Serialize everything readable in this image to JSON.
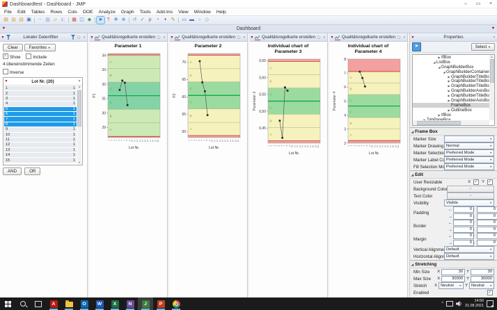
{
  "window": {
    "title": "Dashboardtest - Dashboard - JMP",
    "controls": [
      {
        "name": "minimize",
        "glyph": "–"
      },
      {
        "name": "restore",
        "glyph": "▭"
      },
      {
        "name": "close",
        "glyph": "×"
      }
    ]
  },
  "menu": {
    "items": [
      "File",
      "Edit",
      "Tables",
      "Rows",
      "Cols",
      "DOE",
      "Analyze",
      "Graph",
      "Tools",
      "Add-Ins",
      "View",
      "Window",
      "Help"
    ]
  },
  "toolbar": {
    "icons": [
      {
        "name": "new-data-table-icon",
        "glyph": "▤",
        "color": "#cf8f34"
      },
      {
        "name": "open-icon",
        "glyph": "▨",
        "color": "#d9a33c"
      },
      {
        "name": "open-database-icon",
        "glyph": "▧",
        "color": "#d9a33c"
      },
      {
        "name": "save-icon",
        "glyph": "▣",
        "color": "#4a6fb5"
      },
      {
        "sep": true
      },
      {
        "name": "cut-icon",
        "glyph": "✂",
        "color": "#8a8f98",
        "disabled": true
      },
      {
        "name": "copy-icon",
        "glyph": "▥",
        "color": "#7a9fd4"
      },
      {
        "name": "paste-icon",
        "glyph": "▱",
        "color": "#c09050"
      },
      {
        "name": "journal-icon",
        "glyph": "◧",
        "color": "#8f98a3",
        "disabled": true
      },
      {
        "sep": true
      },
      {
        "name": "data-table-icon",
        "glyph": "▦",
        "color": "#c6554a"
      },
      {
        "name": "analyze-icon",
        "glyph": "◫",
        "color": "#5d87c6"
      },
      {
        "name": "graph-builder-icon",
        "glyph": "◆",
        "color": "#4a9e57"
      },
      {
        "sep": true
      },
      {
        "name": "arrow-tool-icon",
        "glyph": "➤",
        "color": "#1b5fb8",
        "selected": true
      },
      {
        "name": "help-tool-icon",
        "glyph": "?",
        "color": "#cc3b3b"
      },
      {
        "name": "hand-tool-icon",
        "glyph": "✥",
        "color": "#4a8fd0"
      },
      {
        "name": "crosshair-tool-icon",
        "glyph": "⊕",
        "color": "#3c8fd0"
      },
      {
        "sep": true
      },
      {
        "name": "lasso-tool-icon",
        "glyph": "↺",
        "color": "#8a8f98"
      },
      {
        "name": "brush-tool-icon",
        "glyph": "✓",
        "color": "#3d9e3d"
      },
      {
        "name": "magnifier-tool-icon",
        "glyph": "ρ",
        "color": "#666666"
      },
      {
        "name": "zoom-tool-icon",
        "glyph": "◔",
        "color": "#666666"
      },
      {
        "name": "annotate-plus-icon",
        "glyph": "+",
        "color": "#333333"
      },
      {
        "name": "pencil-tool-icon",
        "glyph": "✎",
        "color": "#b5803a"
      },
      {
        "sep": true
      },
      {
        "name": "annotation-rect-icon",
        "glyph": "▭",
        "color": "#3f6fae"
      },
      {
        "name": "annotation-bar-icon",
        "glyph": "▬",
        "color": "#3f6fae"
      },
      {
        "name": "annotation-oval-icon",
        "glyph": "○",
        "color": "#888888"
      },
      {
        "name": "annotation-poly-icon",
        "glyph": "◇",
        "color": "#888888"
      }
    ]
  },
  "dashboard_tab": {
    "label": "Dashboard"
  },
  "filter_panel": {
    "title": "Lokaler Datenfilter",
    "clear_label": "Clear",
    "favorites_label": "Favorites",
    "dropdown_arrow": "▼",
    "show_label": "Show",
    "include_label": "Include",
    "match_text": "4 übereinstimmende Zeilen",
    "inverse_label": "Inverse",
    "list_title": "Lot Nr. (20)",
    "list_close": "×",
    "rows": [
      {
        "label": "1",
        "count": "1",
        "selected": false
      },
      {
        "label": "2",
        "count": "1",
        "selected": false
      },
      {
        "label": "3",
        "count": "1",
        "selected": false
      },
      {
        "label": "4",
        "count": "1",
        "selected": false
      },
      {
        "label": "5",
        "count": "1",
        "selected": true
      },
      {
        "label": "6",
        "count": "1",
        "selected": true
      },
      {
        "label": "7",
        "count": "1",
        "selected": true
      },
      {
        "label": "8",
        "count": "1",
        "selected": true
      },
      {
        "label": "9",
        "count": "1",
        "selected": false
      },
      {
        "label": "10",
        "count": "1",
        "selected": false
      },
      {
        "label": "11",
        "count": "1",
        "selected": false
      },
      {
        "label": "12",
        "count": "1",
        "selected": false
      },
      {
        "label": "13",
        "count": "1",
        "selected": false
      },
      {
        "label": "14",
        "count": "1",
        "selected": false
      },
      {
        "label": "15",
        "count": "1",
        "selected": false
      }
    ],
    "and_label": "AND",
    "or_label": "OR"
  },
  "chart_panel_title": "Qualitätsregelkarte erstellen",
  "chart_data": [
    {
      "type": "line",
      "title_lines": [
        "Parameter 1"
      ],
      "ylabel": "P1",
      "xlabel": "Lot Nr.",
      "ylim": [
        28.3,
        34.12
      ],
      "yticks": [
        {
          "v": 29,
          "label": "29"
        },
        {
          "v": 30,
          "label": "30"
        },
        {
          "v": 31,
          "label": "31"
        },
        {
          "v": 32,
          "label": "32"
        },
        {
          "v": 33,
          "label": "33"
        },
        {
          "v": 34,
          "label": "34"
        }
      ],
      "x_count": 20,
      "x": [
        5,
        6,
        7,
        8
      ],
      "y": [
        31.6,
        32.25,
        32.1,
        30.55
      ],
      "center": 31.2,
      "limit_lines": [
        34.02,
        28.38
      ],
      "olive_lines": [
        33.08,
        32.14,
        30.26,
        29.32
      ],
      "zones": [
        {
          "from": 34.12,
          "to": 34.02,
          "color": "#f2a0a0"
        },
        {
          "from": 34.02,
          "to": 33.08,
          "color": "#cde9b5",
          "label": "A"
        },
        {
          "from": 33.08,
          "to": 32.14,
          "color": "#cde9b5",
          "label": "B"
        },
        {
          "from": 32.14,
          "to": 31.2,
          "color": "#84d3a6",
          "label": "C"
        },
        {
          "from": 31.2,
          "to": 30.26,
          "color": "#84d3a6",
          "label": "C"
        },
        {
          "from": 30.26,
          "to": 29.32,
          "color": "#cde9b5",
          "label": "B"
        },
        {
          "from": 29.32,
          "to": 28.38,
          "color": "#cde9b5",
          "label": "A"
        },
        {
          "from": 28.38,
          "to": 28.3,
          "color": "#f2a0a0"
        }
      ],
      "zone_label_color": "rgba(95,115,80,0.75)"
    },
    {
      "type": "line",
      "title_lines": [
        "Parameter 2"
      ],
      "ylabel": "P2",
      "xlabel": "Lot Nr.",
      "ylim": [
        48.2,
        72.5
      ],
      "yticks": [
        {
          "v": 50,
          "label": "50"
        },
        {
          "v": 55,
          "label": "55"
        },
        {
          "v": 60,
          "label": "60"
        },
        {
          "v": 65,
          "label": "65"
        },
        {
          "v": 70,
          "label": "70"
        }
      ],
      "x_count": 20,
      "x": [
        5,
        6,
        7,
        8
      ],
      "y": [
        70.3,
        64.2,
        61.6,
        54.7
      ],
      "center": 60.4,
      "limit_lines": [
        72.0,
        48.8
      ],
      "olive_lines": [
        68.1,
        64.3,
        56.5,
        52.6
      ],
      "zones": [
        {
          "from": 72.5,
          "to": 72.0,
          "color": "#f2a0a0"
        },
        {
          "from": 72.0,
          "to": 68.1,
          "color": "#f6f2bd",
          "label": "A"
        },
        {
          "from": 68.1,
          "to": 64.3,
          "color": "#f6f2bd",
          "label": "B"
        },
        {
          "from": 64.3,
          "to": 60.4,
          "color": "#9bdb9f",
          "label": "C"
        },
        {
          "from": 60.4,
          "to": 56.5,
          "color": "#9bdb9f",
          "label": "C"
        },
        {
          "from": 56.5,
          "to": 52.6,
          "color": "#f6f2bd",
          "label": "B"
        },
        {
          "from": 52.6,
          "to": 48.8,
          "color": "#f6f2bd",
          "label": "A"
        },
        {
          "from": 48.8,
          "to": 48.2,
          "color": "#f2a0a0"
        }
      ],
      "zone_label_color": "rgba(125,120,70,0.75)"
    },
    {
      "type": "line",
      "title_lines": [
        "Individual chart of",
        "Parameter 3"
      ],
      "ylabel": "Parameter 3",
      "xlabel": "Lot Nr.",
      "ylim": [
        0.405,
        0.655
      ],
      "yticks": [
        {
          "v": 0.45,
          "label": "0,45"
        },
        {
          "v": 0.5,
          "label": "0,50"
        },
        {
          "v": 0.55,
          "label": "0,55"
        },
        {
          "v": 0.6,
          "label": "0,60"
        },
        {
          "v": 0.65,
          "label": "0,65"
        }
      ],
      "x_count": 20,
      "x": [
        5,
        6,
        7,
        8
      ],
      "y": [
        0.472,
        0.421,
        0.571,
        0.561
      ],
      "center": 0.53,
      "limit_lines": [
        0.648,
        0.412
      ],
      "olive_lines": [
        0.609,
        0.569,
        0.491,
        0.451
      ],
      "zones": [
        {
          "from": 0.655,
          "to": 0.648,
          "color": "#f2a0a0"
        },
        {
          "from": 0.648,
          "to": 0.609,
          "color": "#f6f2bd",
          "label": "A"
        },
        {
          "from": 0.609,
          "to": 0.569,
          "color": "#f6f2bd",
          "label": "B"
        },
        {
          "from": 0.569,
          "to": 0.53,
          "color": "#9bdb9f",
          "label": "C"
        },
        {
          "from": 0.53,
          "to": 0.491,
          "color": "#9bdb9f",
          "label": "C"
        },
        {
          "from": 0.491,
          "to": 0.451,
          "color": "#f6f2bd",
          "label": "B"
        },
        {
          "from": 0.451,
          "to": 0.412,
          "color": "#f6f2bd",
          "label": "A"
        },
        {
          "from": 0.412,
          "to": 0.405,
          "color": "#f2a0a0"
        }
      ],
      "zone_label_color": "rgba(125,120,70,0.75)"
    },
    {
      "type": "line",
      "title_lines": [
        "Individual chart of",
        "Parameter 4"
      ],
      "ylabel": "Parameter 4",
      "xlabel": "Lot Nr.",
      "ylim": [
        2.0,
        8.0
      ],
      "yticks": [
        {
          "v": 2,
          "label": "2"
        },
        {
          "v": 3,
          "label": "3"
        },
        {
          "v": 4,
          "label": "4"
        },
        {
          "v": 5,
          "label": "5"
        },
        {
          "v": 6,
          "label": "6"
        },
        {
          "v": 7,
          "label": "7"
        },
        {
          "v": 8,
          "label": "8"
        }
      ],
      "x_count": 20,
      "x": [
        5,
        6,
        7
      ],
      "y": [
        7.1,
        6.65,
        6.05
      ],
      "center": 4.65,
      "limit_lines": [
        7.11,
        2.19
      ],
      "olive_lines": [
        6.29,
        5.47,
        3.83,
        3.01
      ],
      "zones": [
        {
          "from": 8.0,
          "to": 7.11,
          "color": "#f2a0a0"
        },
        {
          "from": 7.11,
          "to": 6.29,
          "color": "#f6f2bd",
          "label": "A"
        },
        {
          "from": 6.29,
          "to": 5.47,
          "color": "#f6f2bd",
          "label": "B"
        },
        {
          "from": 5.47,
          "to": 4.65,
          "color": "#9bdb9f",
          "label": "C"
        },
        {
          "from": 4.65,
          "to": 3.83,
          "color": "#9bdb9f",
          "label": "C"
        },
        {
          "from": 3.83,
          "to": 3.01,
          "color": "#f6f2bd",
          "label": "B"
        },
        {
          "from": 3.01,
          "to": 2.19,
          "color": "#f6f2bd",
          "label": "A"
        },
        {
          "from": 2.19,
          "to": 2.0,
          "color": "#f2a0a0"
        }
      ],
      "zone_label_color": "rgba(125,120,70,0.75)"
    }
  ],
  "chart_style": {
    "center_color": "#00a14b",
    "limit_color": "#c0392b",
    "olive_color": "#a9ac82",
    "point_color": "#2b2b2b",
    "line_color": "#555555"
  },
  "properties": {
    "title": "Properties",
    "close_glyph": "×",
    "float_glyph": "▢",
    "select_label": "Select",
    "dropdown_arrow": "▼",
    "pointer_glyph": "➤",
    "tree": [
      {
        "label": "IfBox",
        "level": 5,
        "state": "collapsed"
      },
      {
        "label": "ListBox",
        "level": 4,
        "state": "expanded"
      },
      {
        "label": "GraphBuilderBox",
        "level": 5,
        "state": "expanded"
      },
      {
        "label": "GraphBuilderContainerEdit",
        "level": 6,
        "state": "expanded"
      },
      {
        "label": "GraphBuilderTitleBox",
        "level": 7,
        "state": "collapsed"
      },
      {
        "label": "GraphBuilderTitleBox",
        "level": 7,
        "state": "collapsed"
      },
      {
        "label": "GraphBuilderTitleBox",
        "level": 7,
        "state": "collapsed"
      },
      {
        "label": "GraphBuilderAxisBox",
        "level": 7,
        "state": "collapsed"
      },
      {
        "label": "GraphBuilderTitleBox",
        "level": 7,
        "state": "collapsed"
      },
      {
        "label": "GraphBuilderAxisBox",
        "level": 7,
        "state": "collapsed"
      },
      {
        "label": "FrameBox",
        "level": 7,
        "state": "none",
        "selected": true
      },
      {
        "label": "OutlineBox",
        "level": 7,
        "state": "collapsed"
      },
      {
        "label": "IfBox",
        "level": 5,
        "state": "collapsed"
      },
      {
        "label": "TabPageBox",
        "level": 2,
        "state": "collapsed"
      },
      {
        "label": "TabPageBox",
        "level": 2,
        "state": "collapsed"
      }
    ],
    "arrow_glyphs": [
      "←",
      "↑",
      "→",
      "↓"
    ],
    "sections": [
      {
        "title": "Frame Box",
        "rows": [
          {
            "label": "Marker Size",
            "control": "select",
            "value": ""
          },
          {
            "label": "Marker Drawing Mode",
            "control": "select",
            "value": "Normal"
          },
          {
            "label": "Marker Selection Mode",
            "control": "select",
            "value": "Preferred Mode"
          },
          {
            "label": "Marker Label Color",
            "control": "select",
            "value": "Preferred Mode"
          },
          {
            "label": "Fill Selection Mode",
            "control": "select",
            "value": "Preferred Mode"
          }
        ]
      },
      {
        "title": "Edit",
        "rows": [
          {
            "label": "User Resizable",
            "control": "xy-check",
            "x": "X",
            "y": "Y",
            "x_checked": true,
            "y_checked": true
          },
          {
            "label": "Background Color",
            "control": "x-field",
            "value": "×"
          },
          {
            "label": "Text Color",
            "control": "x-field",
            "value": "×"
          },
          {
            "label": "Visibility",
            "control": "select",
            "value": "Visible"
          },
          {
            "label": "Padding",
            "control": "spacer4",
            "values": [
              "0",
              "0",
              "0",
              "0"
            ]
          },
          {
            "label": "Border",
            "control": "spacer4",
            "values": [
              "0",
              "0",
              "0",
              "0"
            ]
          },
          {
            "label": "Margin",
            "control": "spacer4",
            "values": [
              "0",
              "0",
              "0",
              "0"
            ]
          },
          {
            "label": "Vertical Alignment",
            "control": "select",
            "value": "Default"
          },
          {
            "label": "Horizontal Alignment",
            "control": "select",
            "value": "Default"
          }
        ]
      },
      {
        "title": "Stretching",
        "rows": [
          {
            "label": "Min Size",
            "control": "xy-field",
            "x": "X",
            "y": "Y",
            "x_value": "30",
            "y_value": "30"
          },
          {
            "label": "Max Size",
            "control": "xy-field",
            "x": "X",
            "y": "Y",
            "x_value": "30000",
            "y_value": "30000"
          },
          {
            "label": "Stretch",
            "control": "xy-select",
            "x": "X",
            "y": "Y",
            "x_value": "Neutral",
            "y_value": "Neutral"
          },
          {
            "label": "Enabled",
            "control": "check",
            "checked": true
          }
        ]
      }
    ]
  },
  "taskbar": {
    "apps": [
      {
        "name": "start-button",
        "kind": "start"
      },
      {
        "name": "search-button",
        "kind": "search"
      },
      {
        "name": "task-view-button",
        "kind": "taskview"
      },
      {
        "name": "acrobat-app",
        "kind": "letter",
        "letter": "A",
        "color": "#b61c12",
        "running": true
      },
      {
        "name": "file-explorer-app",
        "kind": "folder",
        "running": true
      },
      {
        "name": "outlook-app",
        "kind": "letter",
        "letter": "O",
        "color": "#1169b0",
        "running": true
      },
      {
        "name": "word-app",
        "kind": "letter",
        "letter": "W",
        "color": "#1f5bb5",
        "running": true
      },
      {
        "name": "excel-app",
        "kind": "letter",
        "letter": "X",
        "color": "#1d7044",
        "running": true
      },
      {
        "name": "onenote-app",
        "kind": "letter",
        "letter": "N",
        "color": "#6a4b9b",
        "running": true
      },
      {
        "name": "jmp-app",
        "kind": "letter",
        "letter": "J",
        "color": "#3e7d3e",
        "running": true,
        "active": true
      },
      {
        "name": "powerpoint-app",
        "kind": "letter",
        "letter": "P",
        "color": "#c43e1c",
        "running": true
      },
      {
        "name": "chrome-app",
        "kind": "chrome",
        "running": true
      }
    ],
    "tray": {
      "expand_glyph": "^",
      "time": "14:50",
      "date": "31.08.2021"
    }
  }
}
